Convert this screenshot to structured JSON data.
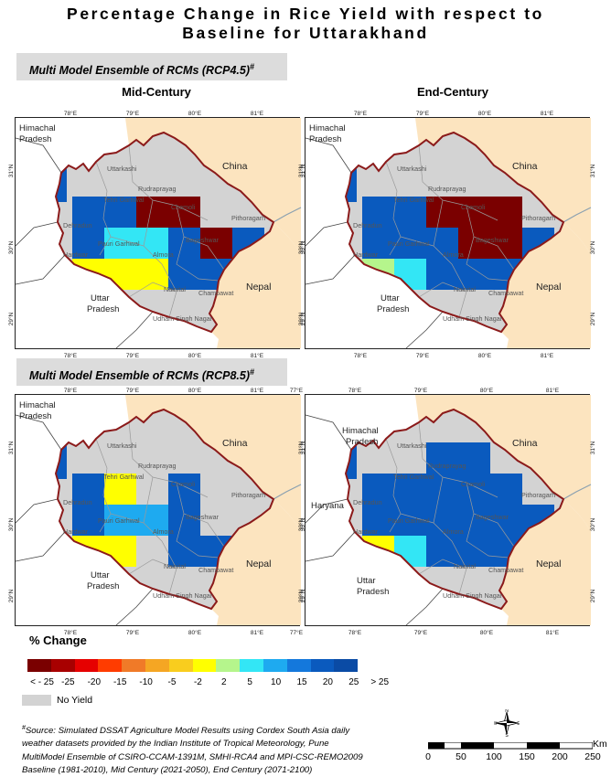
{
  "title_line1": "Percentage Change in Rice Yield with respect to",
  "title_line2": "Baseline for Uttarakhand",
  "scenarios": [
    {
      "label": "Multi Model Ensemble of RCMs (RCP4.5)",
      "mark": "#"
    },
    {
      "label": "Multi Model Ensemble of RCMs (RCP8.5)",
      "mark": "#"
    }
  ],
  "periods": [
    "Mid-Century",
    "End-Century"
  ],
  "lon_ticks": [
    "77°E",
    "78°E",
    "79°E",
    "80°E",
    "81°E"
  ],
  "lat_ticks": [
    "31°N",
    "30°N",
    "29°N"
  ],
  "regions": {
    "himachal": "Himachal",
    "pradesh": "Pradesh",
    "china": "China",
    "nepal": "Nepal",
    "uttar": "Uttar",
    "haryana": "Haryana"
  },
  "districts": [
    "Uttarkashi",
    "Chamoli",
    "Pithoragarh",
    "Hardwar",
    "Pauri Garhwal",
    "Almora",
    "Bageshwar",
    "Nainital",
    "Champawat",
    "Udham Singh Nagar",
    "Dehradun",
    "Tehri Garhwal",
    "Rudraprayag"
  ],
  "legend": {
    "title": "% Change",
    "classes": [
      {
        "label": "< - 25",
        "color": "#7a0000"
      },
      {
        "label": "-25",
        "color": "#a80000"
      },
      {
        "label": "-20",
        "color": "#e60000"
      },
      {
        "label": "-15",
        "color": "#ff3c00"
      },
      {
        "label": "-10",
        "color": "#f07a28"
      },
      {
        "label": "-5",
        "color": "#f5a623"
      },
      {
        "label": "-2",
        "color": "#f9cd1e"
      },
      {
        "label": "2",
        "color": "#ffff00"
      },
      {
        "label": "5",
        "color": "#b5f58c"
      },
      {
        "label": "10",
        "color": "#33e6f5"
      },
      {
        "label": "15",
        "color": "#1eaaf0"
      },
      {
        "label": "20",
        "color": "#1478dc"
      },
      {
        "label": "25",
        "color": "#0a5abe"
      },
      {
        "label": "> 25",
        "color": "#0a4ba5"
      }
    ],
    "no_yield_label": "No Yield",
    "no_yield_color": "#d3d3d3"
  },
  "source": {
    "mark": "#",
    "line1": "Source: Simulated DSSAT Agriculture Model Results using Cordex South Asia daily",
    "line2": "weather datasets provided by the Indian Institute of Tropical Meteorology, Pune",
    "line3": "MultiModel Ensemble of CSIRO-CCAM-1391M, SMHI-RCA4 and MPI-CSC-REMO2009",
    "line4": "Baseline (1981-2010), Mid Century (2021-2050), End Century (2071-2100)"
  },
  "scale": {
    "unit": "Km",
    "ticks": [
      "0",
      "50",
      "100",
      "150",
      "200",
      "250"
    ]
  },
  "compass": {
    "n": "N",
    "s": "S",
    "e": "E",
    "w": "W"
  },
  "colors": {
    "neighbor": "#fce4bf",
    "boundary": "#8b1a1a",
    "border_line": "#444444",
    "river": "#8aa0b0",
    "map_bg": "#ffffff"
  }
}
